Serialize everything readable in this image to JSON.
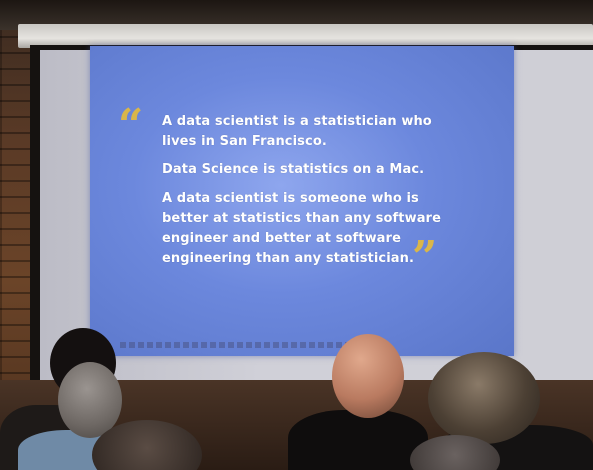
{
  "slide": {
    "quote_open": "“",
    "quote_close": "”",
    "quotes": [
      "A data scientist is a statistician who lives in San Francisco.",
      "Data Science is statistics on a Mac.",
      "A data scientist is someone who is better at statistics than any software engineer and better at software engineering than any statistician."
    ]
  },
  "colors": {
    "slide_blue": "#6c88dd",
    "quote_gold": "#d9b64a",
    "text_white": "#ffffff",
    "brick": "#6b4428"
  }
}
